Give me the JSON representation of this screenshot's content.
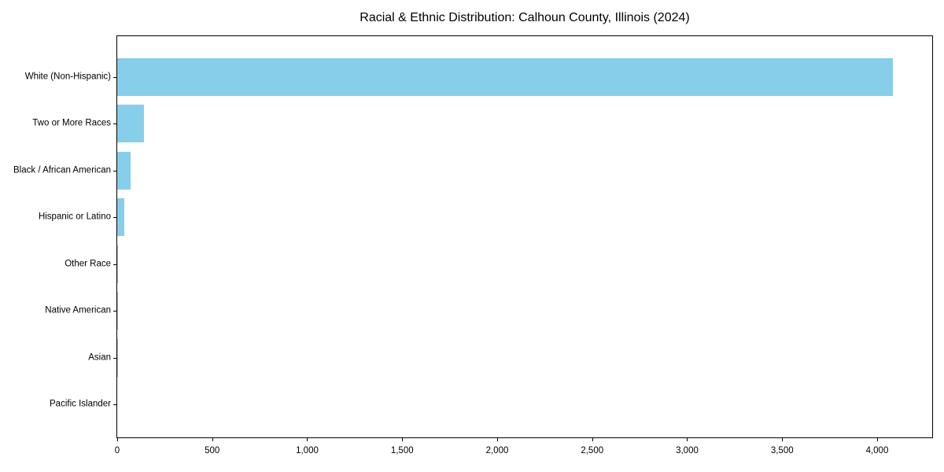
{
  "chart_data": {
    "type": "bar",
    "orientation": "horizontal",
    "title": "Racial & Ethnic Distribution: Calhoun County, Illinois (2024)",
    "categories": [
      "White (Non-Hispanic)",
      "Two or More Races",
      "Black / African American",
      "Hispanic or Latino",
      "Other Race",
      "Native American",
      "Asian",
      "Pacific Islander"
    ],
    "values": [
      4083,
      140,
      70,
      36,
      5,
      2,
      1,
      0
    ],
    "bar_color": "#87CEEB",
    "xlabel": "",
    "ylabel": "",
    "xlim": [
      0,
      4290
    ],
    "xticks": [
      0,
      500,
      1000,
      1500,
      2000,
      2500,
      3000,
      3500,
      4000
    ],
    "xtick_labels": [
      "0",
      "500",
      "1,000",
      "1,500",
      "2,000",
      "2,500",
      "3,000",
      "3,500",
      "4,000"
    ],
    "grid": false,
    "legend": false,
    "frame": "full-box",
    "text_color": "#000000"
  }
}
